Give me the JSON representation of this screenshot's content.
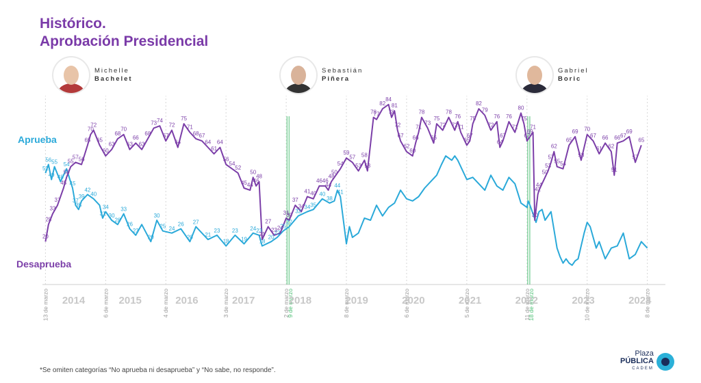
{
  "title": {
    "line1": "Histórico.",
    "line2": "Aprobación Presidencial"
  },
  "presidents": [
    {
      "first": "Michelle",
      "last": "Bachelet",
      "skin": "#e8c4a8",
      "cloth": "#b33a3a"
    },
    {
      "first": "Sebastián",
      "last": "Piñera",
      "skin": "#d9b39a",
      "cloth": "#333333"
    },
    {
      "first": "Gabriel",
      "last": "Boric",
      "skin": "#e0b89c",
      "cloth": "#2b2b3a"
    }
  ],
  "footnote": "*Se omiten categorías “No aprueba ni desaprueba” y “No sabe, no responde”.",
  "logo": {
    "line1": "Plaza",
    "line2": "PÚBLICA",
    "line3": "CADEM"
  },
  "colors": {
    "aprueba": "#2aa9d9",
    "desaprueba": "#7b3ea8",
    "title": "#7a3aa8",
    "green": "#4bbf73"
  },
  "chart_data": {
    "type": "line",
    "title": "Histórico. Aprobación Presidencial",
    "ylim": [
      0,
      90
    ],
    "x_range": [
      2013.95,
      2024.3
    ],
    "years": [
      "2014",
      "2015",
      "2016",
      "2017",
      "2018",
      "2019",
      "2020",
      "2021",
      "2022",
      "2023",
      "2024"
    ],
    "date_labels": [
      {
        "text": "13 de marzo",
        "x": 2014.0,
        "color": "gray"
      },
      {
        "text": "6 de marzo",
        "x": 2015.0,
        "color": "gray"
      },
      {
        "text": "4 de marzo",
        "x": 2016.0,
        "color": "gray"
      },
      {
        "text": "3 de marzo",
        "x": 2017.0,
        "color": "gray"
      },
      {
        "text": "2 de marzo",
        "x": 2018.0,
        "color": "gray"
      },
      {
        "text": "9 de marzo",
        "x": 2018.07,
        "color": "green"
      },
      {
        "text": "8 de marzo",
        "x": 2019.0,
        "color": "gray"
      },
      {
        "text": "6 de marzo",
        "x": 2020.0,
        "color": "gray"
      },
      {
        "text": "5 de marzo",
        "x": 2021.0,
        "color": "gray"
      },
      {
        "text": "11 de marzo",
        "x": 2022.0,
        "color": "gray"
      },
      {
        "text": "18 de marzo",
        "x": 2022.07,
        "color": "green"
      },
      {
        "text": "10 de marzo",
        "x": 2023.0,
        "color": "gray"
      },
      {
        "text": "8 de marzo",
        "x": 2024.0,
        "color": "gray"
      }
    ],
    "transitions": [
      2018.03,
      2022.03
    ],
    "series": [
      {
        "name": "Aprueba",
        "points": [
          [
            2014.0,
            52
          ],
          [
            2014.05,
            56
          ],
          [
            2014.1,
            49
          ],
          [
            2014.15,
            55
          ],
          [
            2014.25,
            48
          ],
          [
            2014.35,
            54
          ],
          [
            2014.45,
            45
          ],
          [
            2014.5,
            37
          ],
          [
            2014.55,
            35
          ],
          [
            2014.6,
            39
          ],
          [
            2014.7,
            42
          ],
          [
            2014.8,
            40
          ],
          [
            2014.9,
            37
          ],
          [
            2014.95,
            31
          ],
          [
            2015.0,
            34
          ],
          [
            2015.1,
            30
          ],
          [
            2015.2,
            28
          ],
          [
            2015.3,
            33
          ],
          [
            2015.4,
            26
          ],
          [
            2015.5,
            23
          ],
          [
            2015.6,
            28
          ],
          [
            2015.75,
            20
          ],
          [
            2015.85,
            30
          ],
          [
            2015.95,
            25
          ],
          [
            2016.1,
            24
          ],
          [
            2016.25,
            26
          ],
          [
            2016.4,
            20
          ],
          [
            2016.5,
            27
          ],
          [
            2016.7,
            21
          ],
          [
            2016.85,
            23
          ],
          [
            2017.0,
            18
          ],
          [
            2017.15,
            23
          ],
          [
            2017.3,
            19
          ],
          [
            2017.45,
            24
          ],
          [
            2017.55,
            23
          ],
          [
            2017.6,
            18
          ],
          [
            2017.75,
            20
          ],
          [
            2017.85,
            22
          ],
          [
            2017.95,
            25
          ],
          [
            2018.05,
            27
          ],
          [
            2018.2,
            32
          ],
          [
            2018.35,
            34
          ],
          [
            2018.45,
            35
          ],
          [
            2018.6,
            40
          ],
          [
            2018.72,
            38
          ],
          [
            2018.8,
            39
          ],
          [
            2018.85,
            44
          ],
          [
            2018.9,
            41
          ],
          [
            2019.0,
            19
          ],
          [
            2019.05,
            27
          ],
          [
            2019.1,
            22
          ],
          [
            2019.2,
            24
          ],
          [
            2019.3,
            31
          ],
          [
            2019.4,
            30
          ],
          [
            2019.5,
            37
          ],
          [
            2019.6,
            32
          ],
          [
            2019.7,
            36
          ],
          [
            2019.8,
            38
          ],
          [
            2019.9,
            44
          ],
          [
            2020.0,
            40
          ],
          [
            2020.1,
            39
          ],
          [
            2020.2,
            41
          ],
          [
            2020.3,
            45
          ],
          [
            2020.4,
            48
          ],
          [
            2020.5,
            51
          ],
          [
            2020.58,
            56
          ],
          [
            2020.65,
            60
          ],
          [
            2020.75,
            58
          ],
          [
            2020.8,
            60
          ],
          [
            2020.85,
            58
          ],
          [
            2021.0,
            49
          ],
          [
            2021.1,
            50
          ],
          [
            2021.2,
            47
          ],
          [
            2021.3,
            44
          ],
          [
            2021.4,
            51
          ],
          [
            2021.5,
            46
          ],
          [
            2021.6,
            44
          ],
          [
            2021.7,
            50
          ],
          [
            2021.8,
            47
          ],
          [
            2021.9,
            38
          ],
          [
            2022.0,
            36
          ],
          [
            2022.02,
            39
          ],
          [
            2022.05,
            37
          ],
          [
            2022.1,
            33
          ],
          [
            2022.15,
            29
          ],
          [
            2022.2,
            34
          ],
          [
            2022.25,
            35
          ],
          [
            2022.3,
            30
          ],
          [
            2022.4,
            34
          ],
          [
            2022.5,
            17
          ],
          [
            2022.55,
            13
          ],
          [
            2022.6,
            10
          ],
          [
            2022.65,
            12
          ],
          [
            2022.7,
            10
          ],
          [
            2022.75,
            9
          ],
          [
            2022.8,
            11
          ],
          [
            2022.85,
            12
          ],
          [
            2022.9,
            18
          ],
          [
            2022.95,
            24
          ],
          [
            2023.0,
            29
          ],
          [
            2023.05,
            27
          ],
          [
            2023.15,
            17
          ],
          [
            2023.2,
            20
          ],
          [
            2023.3,
            12
          ],
          [
            2023.4,
            17
          ],
          [
            2023.5,
            18
          ],
          [
            2023.6,
            24
          ],
          [
            2023.7,
            12
          ],
          [
            2023.8,
            14
          ],
          [
            2023.9,
            20
          ],
          [
            2024.0,
            17
          ]
        ]
      },
      {
        "name": "Desaprueba",
        "points": [
          [
            2014.0,
            20
          ],
          [
            2014.05,
            28
          ],
          [
            2014.12,
            33
          ],
          [
            2014.2,
            37
          ],
          [
            2014.3,
            45
          ],
          [
            2014.35,
            50
          ],
          [
            2014.42,
            55
          ],
          [
            2014.5,
            57
          ],
          [
            2014.6,
            56
          ],
          [
            2014.7,
            65
          ],
          [
            2014.75,
            70
          ],
          [
            2014.8,
            72
          ],
          [
            2014.9,
            65
          ],
          [
            2015.0,
            60
          ],
          [
            2015.1,
            63
          ],
          [
            2015.2,
            68
          ],
          [
            2015.3,
            70
          ],
          [
            2015.4,
            63
          ],
          [
            2015.5,
            66
          ],
          [
            2015.6,
            63
          ],
          [
            2015.7,
            68
          ],
          [
            2015.8,
            73
          ],
          [
            2015.9,
            74
          ],
          [
            2016.0,
            67
          ],
          [
            2016.1,
            72
          ],
          [
            2016.2,
            64
          ],
          [
            2016.3,
            75
          ],
          [
            2016.4,
            71
          ],
          [
            2016.5,
            68
          ],
          [
            2016.6,
            67
          ],
          [
            2016.7,
            64
          ],
          [
            2016.8,
            61
          ],
          [
            2016.9,
            64
          ],
          [
            2017.0,
            56
          ],
          [
            2017.1,
            54
          ],
          [
            2017.2,
            52
          ],
          [
            2017.3,
            45
          ],
          [
            2017.4,
            44
          ],
          [
            2017.45,
            50
          ],
          [
            2017.5,
            46
          ],
          [
            2017.55,
            48
          ],
          [
            2017.6,
            21
          ],
          [
            2017.7,
            27
          ],
          [
            2017.8,
            23
          ],
          [
            2017.9,
            24
          ],
          [
            2018.0,
            31
          ],
          [
            2018.05,
            30
          ],
          [
            2018.15,
            37
          ],
          [
            2018.25,
            34
          ],
          [
            2018.35,
            41
          ],
          [
            2018.45,
            40
          ],
          [
            2018.55,
            46
          ],
          [
            2018.65,
            46
          ],
          [
            2018.7,
            44
          ],
          [
            2018.75,
            48
          ],
          [
            2018.8,
            50
          ],
          [
            2018.9,
            54
          ],
          [
            2019.0,
            59
          ],
          [
            2019.1,
            57
          ],
          [
            2019.2,
            53
          ],
          [
            2019.3,
            58
          ],
          [
            2019.35,
            53
          ],
          [
            2019.45,
            78
          ],
          [
            2019.5,
            77
          ],
          [
            2019.6,
            82
          ],
          [
            2019.7,
            84
          ],
          [
            2019.75,
            78
          ],
          [
            2019.8,
            81
          ],
          [
            2019.85,
            72
          ],
          [
            2019.9,
            67
          ],
          [
            2020.0,
            62
          ],
          [
            2020.1,
            60
          ],
          [
            2020.15,
            66
          ],
          [
            2020.2,
            71
          ],
          [
            2020.25,
            78
          ],
          [
            2020.35,
            73
          ],
          [
            2020.45,
            66
          ],
          [
            2020.5,
            75
          ],
          [
            2020.6,
            72
          ],
          [
            2020.7,
            78
          ],
          [
            2020.8,
            72
          ],
          [
            2020.85,
            76
          ],
          [
            2020.9,
            71
          ],
          [
            2021.0,
            65
          ],
          [
            2021.05,
            67
          ],
          [
            2021.1,
            75
          ],
          [
            2021.2,
            82
          ],
          [
            2021.3,
            79
          ],
          [
            2021.4,
            72
          ],
          [
            2021.5,
            76
          ],
          [
            2021.55,
            64
          ],
          [
            2021.6,
            67
          ],
          [
            2021.7,
            76
          ],
          [
            2021.8,
            71
          ],
          [
            2021.9,
            80
          ],
          [
            2021.95,
            75
          ],
          [
            2022.0,
            67
          ],
          [
            2022.05,
            69
          ],
          [
            2022.1,
            71
          ],
          [
            2022.13,
            30
          ],
          [
            2022.18,
            42
          ],
          [
            2022.2,
            44
          ],
          [
            2022.3,
            50
          ],
          [
            2022.35,
            53
          ],
          [
            2022.4,
            57
          ],
          [
            2022.45,
            62
          ],
          [
            2022.5,
            55
          ],
          [
            2022.6,
            54
          ],
          [
            2022.7,
            65
          ],
          [
            2022.8,
            69
          ],
          [
            2022.9,
            58
          ],
          [
            2023.0,
            70
          ],
          [
            2023.1,
            67
          ],
          [
            2023.2,
            61
          ],
          [
            2023.3,
            66
          ],
          [
            2023.4,
            62
          ],
          [
            2023.45,
            51
          ],
          [
            2023.5,
            66
          ],
          [
            2023.6,
            67
          ],
          [
            2023.7,
            69
          ],
          [
            2023.8,
            57
          ],
          [
            2023.9,
            65
          ]
        ]
      }
    ],
    "aprueba_labels": [
      [
        2014.0,
        52
      ],
      [
        2014.05,
        56
      ],
      [
        2014.1,
        49
      ],
      [
        2014.15,
        55
      ],
      [
        2014.25,
        48
      ],
      [
        2014.35,
        54
      ],
      [
        2014.45,
        45
      ],
      [
        2014.5,
        37
      ],
      [
        2014.55,
        35
      ],
      [
        2014.6,
        39
      ],
      [
        2014.7,
        42
      ],
      [
        2014.8,
        40
      ],
      [
        2014.95,
        31
      ],
      [
        2015.0,
        34
      ],
      [
        2015.1,
        30
      ],
      [
        2015.2,
        28
      ],
      [
        2015.3,
        33
      ],
      [
        2015.4,
        26
      ],
      [
        2015.5,
        23
      ],
      [
        2015.75,
        20
      ],
      [
        2015.85,
        30
      ],
      [
        2015.95,
        25
      ],
      [
        2016.1,
        24
      ],
      [
        2016.25,
        26
      ],
      [
        2016.4,
        20
      ],
      [
        2016.5,
        27
      ],
      [
        2016.7,
        21
      ],
      [
        2016.85,
        23
      ],
      [
        2017.0,
        18
      ],
      [
        2017.15,
        23
      ],
      [
        2017.3,
        19
      ],
      [
        2017.45,
        24
      ],
      [
        2017.55,
        23
      ],
      [
        2017.6,
        18
      ],
      [
        2017.75,
        20
      ],
      [
        2017.85,
        22
      ],
      [
        2017.95,
        25
      ],
      [
        2018.05,
        27
      ],
      [
        2018.2,
        32
      ],
      [
        2018.35,
        34
      ],
      [
        2018.45,
        35
      ],
      [
        2018.6,
        40
      ],
      [
        2018.72,
        38
      ],
      [
        2018.85,
        44
      ],
      [
        2018.9,
        41
      ]
    ]
  }
}
